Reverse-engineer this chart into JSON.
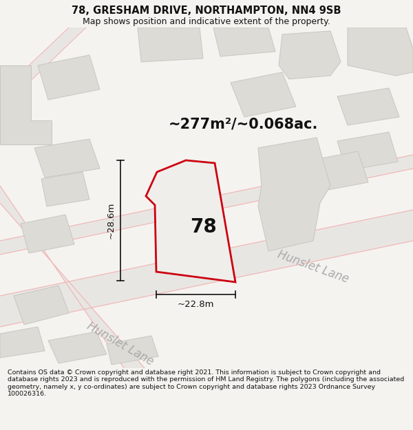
{
  "title": "78, GRESHAM DRIVE, NORTHAMPTON, NN4 9SB",
  "subtitle": "Map shows position and indicative extent of the property.",
  "area_text": "~277m²/~0.068ac.",
  "width_label": "~22.8m",
  "height_label": "~28.6m",
  "property_number": "78",
  "road_label": "Hunslet Lane",
  "footer": "Contains OS data © Crown copyright and database right 2021. This information is subject to Crown copyright and database rights 2023 and is reproduced with the permission of HM Land Registry. The polygons (including the associated geometry, namely x, y co-ordinates) are subject to Crown copyright and database rights 2023 Ordnance Survey 100026316.",
  "bg_color": "#f5f3ef",
  "map_bg_color": "#f5f3ef",
  "property_fill": "#f0eeea",
  "property_edge": "#cc0011",
  "building_fill": "#dddbd6",
  "building_edge": "#c8c6c0",
  "road_fill": "#e8e6e2",
  "road_line_color": "#f0b8b8",
  "dim_line_color": "#111111",
  "text_color": "#111111",
  "road_text_color": "#aaaaaa",
  "title_fontsize": 10.5,
  "subtitle_fontsize": 9,
  "area_fontsize": 15,
  "label_fontsize": 9.5,
  "property_num_fontsize": 20,
  "road_label_fontsize": 12
}
